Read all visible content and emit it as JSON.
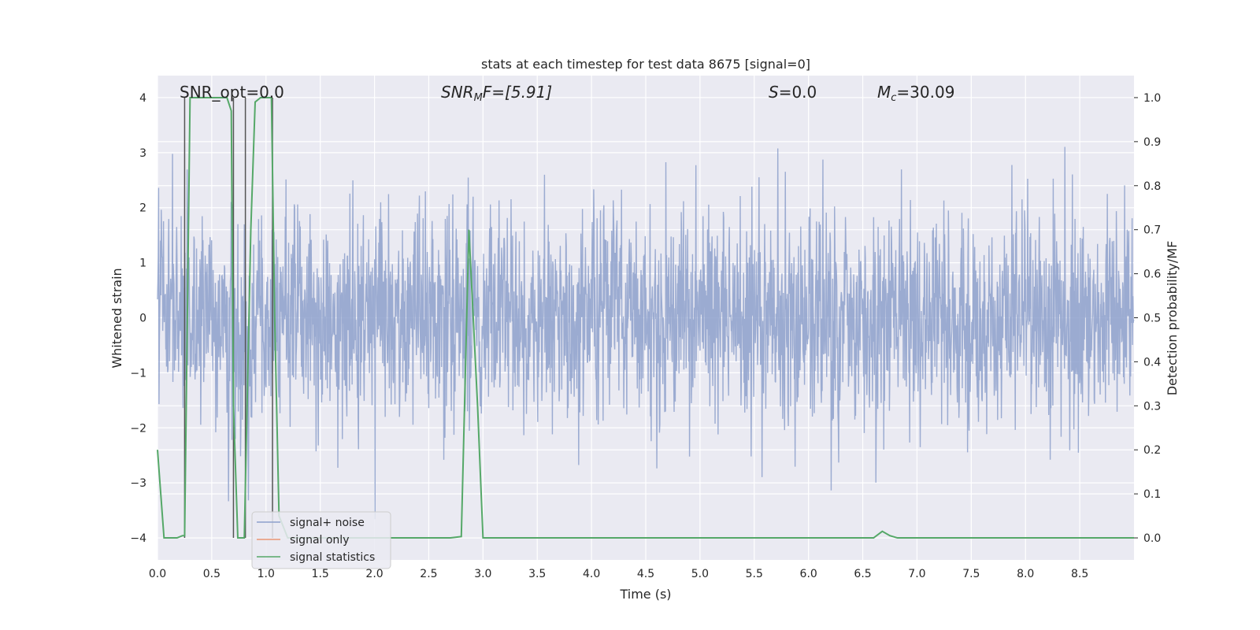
{
  "chart_data": {
    "type": "line",
    "title": "stats at each timestep for test data 8675 [signal=0]",
    "xlabel": "Time (s)",
    "ylabel_left": "Whitened strain",
    "ylabel_right": "Detection probability/MF",
    "xlim": [
      0,
      9.0
    ],
    "ylim_left": [
      -4.4,
      4.4
    ],
    "ylim_right": [
      -0.05,
      1.05
    ],
    "x_ticks": [
      "0.0",
      "0.5",
      "1.0",
      "1.5",
      "2.0",
      "2.5",
      "3.0",
      "3.5",
      "4.0",
      "4.5",
      "5.0",
      "5.5",
      "6.0",
      "6.5",
      "7.0",
      "7.5",
      "8.0",
      "8.5"
    ],
    "y_left_ticks": [
      "4",
      "3",
      "2",
      "1",
      "0",
      "−1",
      "−2",
      "−3",
      "−4"
    ],
    "y_right_ticks": [
      "1.0",
      "0.9",
      "0.8",
      "0.7",
      "0.6",
      "0.5",
      "0.4",
      "0.3",
      "0.2",
      "0.1",
      "0.0"
    ],
    "grid": true,
    "legend_position": "lower-left",
    "annotations": {
      "snr_opt": "SNR_opt=0.0",
      "snr_mf_main": "SNR",
      "snr_mf_sub": "M",
      "snr_mf_rest": "F=[5.91]",
      "s_main": "S",
      "s_rest": "=0.0",
      "mc_main": "M",
      "mc_sub": "c",
      "mc_rest": "=30.09"
    },
    "series": [
      {
        "name": "signal+ noise",
        "color": "#8da0cb",
        "description_values": "whitened strain noise, approx. ±1.6 typical amplitude",
        "amplitude_typical": 1.6,
        "amplitude_peak": 3.8
      },
      {
        "name": "signal only",
        "color": "#e99675",
        "values": []
      },
      {
        "name": "signal statistics",
        "color": "#55a868",
        "x": [
          0.0,
          0.06,
          0.18,
          0.23,
          0.25,
          0.3,
          0.55,
          0.64,
          0.68,
          0.7,
          0.74,
          0.8,
          0.86,
          0.9,
          0.95,
          1.02,
          1.05,
          1.08,
          1.12,
          1.2,
          2.7,
          2.8,
          2.87,
          2.95,
          3.0,
          3.1,
          6.6,
          6.68,
          6.75,
          6.82,
          9.0
        ],
        "y": [
          0.2,
          0.0,
          0.0,
          0.005,
          0.005,
          1.0,
          1.0,
          1.0,
          0.97,
          0.3,
          0.0,
          0.0,
          0.7,
          0.99,
          1.0,
          1.0,
          1.0,
          0.5,
          0.05,
          0.0,
          0.0,
          0.003,
          0.7,
          0.3,
          0.0,
          0.0,
          0.0,
          0.015,
          0.005,
          0.0,
          0.0
        ]
      }
    ],
    "vertical_markers_x": [
      0.25,
      0.7,
      0.81,
      1.06
    ]
  }
}
